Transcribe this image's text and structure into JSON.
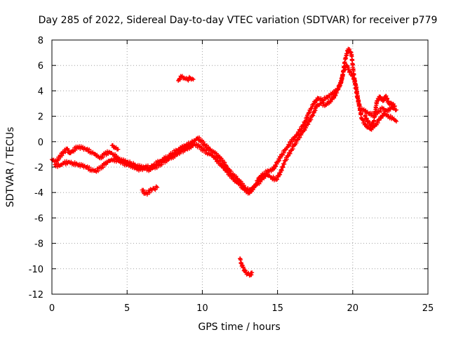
{
  "chart_data": {
    "type": "scatter",
    "title": "Day 285 of 2022, Sidereal Day-to-day VTEC variation (SDTVAR) for receiver p779",
    "xlabel": "GPS time / hours",
    "ylabel": "SDTVAR / TECUs",
    "xlim": [
      0,
      25
    ],
    "ylim": [
      -12,
      8
    ],
    "xticks": [
      0,
      5,
      10,
      15,
      20,
      25
    ],
    "xtick_labels": [
      "0",
      "5",
      "10",
      "15",
      "20",
      "25"
    ],
    "yticks": [
      -12,
      -10,
      -8,
      -6,
      -4,
      -2,
      0,
      2,
      4,
      6,
      8
    ],
    "ytick_labels": [
      "-12",
      "-10",
      "-8",
      "-6",
      "-4",
      "-2",
      "0",
      "2",
      "4",
      "6",
      "8"
    ],
    "grid": true,
    "marker": "+",
    "color": "#ff0000",
    "series": [
      {
        "name": "SDTVAR p779",
        "segments": [
          [
            [
              0.0,
              -1.4
            ],
            [
              0.3,
              -1.6
            ],
            [
              0.5,
              -1.2
            ],
            [
              0.8,
              -0.8
            ],
            [
              1.0,
              -0.6
            ],
            [
              1.2,
              -0.9
            ],
            [
              1.4,
              -0.7
            ],
            [
              1.7,
              -0.4
            ],
            [
              2.0,
              -0.5
            ],
            [
              2.3,
              -0.6
            ],
            [
              2.6,
              -0.8
            ],
            [
              2.9,
              -1.0
            ],
            [
              3.2,
              -1.3
            ],
            [
              3.5,
              -1.0
            ],
            [
              3.8,
              -0.8
            ],
            [
              4.1,
              -1.0
            ],
            [
              4.4,
              -1.3
            ],
            [
              4.7,
              -1.5
            ],
            [
              5.0,
              -1.6
            ],
            [
              5.3,
              -1.7
            ],
            [
              5.6,
              -1.9
            ],
            [
              5.9,
              -2.0
            ],
            [
              6.2,
              -2.0
            ],
            [
              6.5,
              -2.0
            ],
            [
              6.8,
              -1.8
            ],
            [
              7.1,
              -1.6
            ],
            [
              7.4,
              -1.4
            ],
            [
              7.7,
              -1.2
            ],
            [
              8.0,
              -0.9
            ],
            [
              8.3,
              -0.7
            ],
            [
              8.6,
              -0.5
            ],
            [
              8.9,
              -0.3
            ],
            [
              9.2,
              -0.1
            ],
            [
              9.5,
              0.1
            ],
            [
              9.7,
              0.3
            ],
            [
              9.9,
              0.1
            ],
            [
              10.2,
              -0.3
            ],
            [
              10.5,
              -0.6
            ],
            [
              10.8,
              -0.9
            ],
            [
              11.1,
              -1.2
            ],
            [
              11.4,
              -1.6
            ],
            [
              11.7,
              -2.1
            ],
            [
              12.0,
              -2.6
            ],
            [
              12.3,
              -2.9
            ],
            [
              12.6,
              -3.3
            ],
            [
              12.9,
              -3.7
            ],
            [
              13.2,
              -3.9
            ],
            [
              13.5,
              -3.5
            ],
            [
              13.8,
              -2.8
            ],
            [
              14.1,
              -2.5
            ],
            [
              14.4,
              -2.3
            ],
            [
              14.7,
              -2.2
            ],
            [
              15.0,
              -1.6
            ],
            [
              15.3,
              -1.0
            ],
            [
              15.6,
              -0.5
            ],
            [
              15.9,
              0.0
            ],
            [
              16.2,
              0.4
            ],
            [
              16.5,
              0.9
            ],
            [
              16.8,
              1.5
            ],
            [
              17.1,
              2.3
            ],
            [
              17.4,
              3.0
            ],
            [
              17.7,
              3.4
            ],
            [
              18.0,
              3.3
            ],
            [
              18.3,
              3.5
            ],
            [
              18.6,
              3.7
            ],
            [
              18.9,
              4.0
            ],
            [
              19.1,
              4.3
            ],
            [
              19.3,
              5.0
            ],
            [
              19.5,
              6.5
            ],
            [
              19.7,
              7.3
            ],
            [
              19.9,
              7.0
            ],
            [
              20.1,
              5.0
            ],
            [
              20.3,
              3.5
            ],
            [
              20.5,
              2.6
            ],
            [
              20.8,
              2.4
            ],
            [
              21.1,
              2.2
            ],
            [
              21.4,
              2.1
            ],
            [
              21.7,
              2.4
            ],
            [
              22.0,
              2.6
            ],
            [
              22.3,
              2.4
            ],
            [
              22.6,
              2.7
            ],
            [
              22.9,
              2.5
            ]
          ],
          [
            [
              0.2,
              -1.8
            ],
            [
              0.5,
              -1.9
            ],
            [
              0.8,
              -1.7
            ],
            [
              1.1,
              -1.6
            ],
            [
              1.4,
              -1.7
            ],
            [
              1.7,
              -1.8
            ],
            [
              2.0,
              -1.9
            ],
            [
              2.3,
              -2.0
            ],
            [
              2.6,
              -2.2
            ],
            [
              2.9,
              -2.3
            ],
            [
              3.2,
              -2.1
            ],
            [
              3.5,
              -1.8
            ],
            [
              3.8,
              -1.5
            ],
            [
              4.1,
              -1.4
            ],
            [
              4.4,
              -1.5
            ],
            [
              4.7,
              -1.7
            ],
            [
              5.0,
              -1.8
            ],
            [
              5.3,
              -1.9
            ],
            [
              5.6,
              -2.1
            ],
            [
              5.9,
              -2.2
            ],
            [
              6.2,
              -2.1
            ],
            [
              6.5,
              -2.2
            ],
            [
              6.8,
              -2.0
            ],
            [
              7.1,
              -1.9
            ],
            [
              7.4,
              -1.6
            ],
            [
              7.7,
              -1.4
            ],
            [
              8.0,
              -1.2
            ],
            [
              8.3,
              -1.0
            ],
            [
              8.6,
              -0.8
            ],
            [
              8.9,
              -0.6
            ],
            [
              9.2,
              -0.4
            ],
            [
              9.5,
              -0.2
            ],
            [
              9.8,
              -0.4
            ],
            [
              10.1,
              -0.7
            ],
            [
              10.4,
              -0.9
            ],
            [
              10.7,
              -1.1
            ],
            [
              11.0,
              -1.5
            ],
            [
              11.3,
              -1.9
            ],
            [
              11.6,
              -2.3
            ],
            [
              11.9,
              -2.7
            ],
            [
              12.2,
              -3.1
            ],
            [
              12.5,
              -3.4
            ],
            [
              12.8,
              -3.8
            ],
            [
              13.1,
              -4.0
            ],
            [
              13.4,
              -3.6
            ],
            [
              13.7,
              -3.3
            ],
            [
              14.0,
              -2.9
            ],
            [
              14.3,
              -2.6
            ],
            [
              14.6,
              -2.8
            ],
            [
              14.9,
              -3.0
            ],
            [
              15.2,
              -2.4
            ],
            [
              15.5,
              -1.5
            ],
            [
              15.8,
              -0.9
            ],
            [
              16.1,
              -0.3
            ],
            [
              16.4,
              0.3
            ],
            [
              16.7,
              0.8
            ],
            [
              17.0,
              1.4
            ],
            [
              17.3,
              2.0
            ],
            [
              17.6,
              2.8
            ],
            [
              17.9,
              3.0
            ],
            [
              18.2,
              2.9
            ],
            [
              18.5,
              3.2
            ],
            [
              18.8,
              3.6
            ],
            [
              19.0,
              4.1
            ],
            [
              19.2,
              4.6
            ],
            [
              19.4,
              5.6
            ],
            [
              19.6,
              6.0
            ],
            [
              19.8,
              5.5
            ],
            [
              20.0,
              5.2
            ],
            [
              20.2,
              4.5
            ],
            [
              20.4,
              3.0
            ],
            [
              20.6,
              1.8
            ],
            [
              20.9,
              1.2
            ],
            [
              21.2,
              1.0
            ],
            [
              21.5,
              1.3
            ],
            [
              21.8,
              1.8
            ],
            [
              22.1,
              2.2
            ],
            [
              22.4,
              2.0
            ],
            [
              22.7,
              1.8
            ],
            [
              22.9,
              1.6
            ]
          ],
          [
            [
              4.0,
              -0.3
            ],
            [
              4.2,
              -0.5
            ],
            [
              4.4,
              -0.6
            ]
          ],
          [
            [
              8.4,
              4.8
            ],
            [
              8.6,
              5.1
            ],
            [
              8.8,
              5.0
            ],
            [
              9.0,
              4.9
            ],
            [
              9.2,
              5.0
            ],
            [
              9.4,
              4.9
            ]
          ],
          [
            [
              6.0,
              -3.8
            ],
            [
              6.2,
              -4.1
            ],
            [
              6.4,
              -4.0
            ],
            [
              6.6,
              -3.8
            ],
            [
              6.8,
              -3.7
            ],
            [
              7.0,
              -3.6
            ]
          ],
          [
            [
              12.5,
              -9.2
            ],
            [
              12.6,
              -9.6
            ],
            [
              12.7,
              -9.9
            ],
            [
              12.8,
              -10.1
            ],
            [
              12.9,
              -10.3
            ],
            [
              13.0,
              -10.4
            ],
            [
              13.2,
              -10.5
            ],
            [
              13.3,
              -10.3
            ]
          ],
          [
            [
              20.8,
              2.0
            ],
            [
              21.0,
              1.6
            ],
            [
              21.2,
              1.3
            ],
            [
              21.4,
              1.6
            ],
            [
              21.6,
              3.2
            ],
            [
              21.8,
              3.5
            ],
            [
              22.0,
              3.2
            ],
            [
              22.2,
              3.6
            ],
            [
              22.4,
              3.0
            ],
            [
              22.6,
              3.0
            ],
            [
              22.8,
              2.8
            ]
          ]
        ]
      }
    ]
  }
}
